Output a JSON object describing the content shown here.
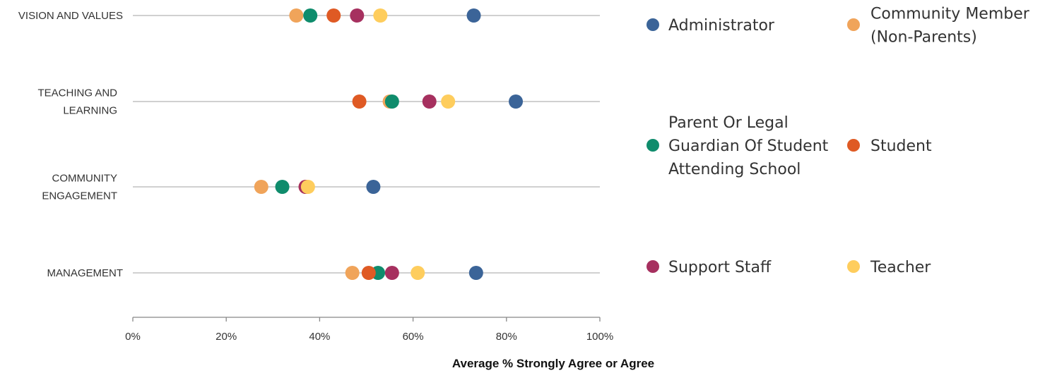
{
  "chart_data": {
    "type": "scatter",
    "subtype": "dot-plot",
    "orientation": "horizontal",
    "title": "",
    "xlabel": "Average % Strongly Agree or Agree",
    "ylabel": "",
    "xlim": [
      0,
      100
    ],
    "x_ticks": [
      "0%",
      "20%",
      "40%",
      "60%",
      "80%",
      "100%"
    ],
    "x_tick_values": [
      0,
      20,
      40,
      60,
      80,
      100
    ],
    "grid": false,
    "legend_position": "right",
    "categories": [
      [
        "VISION AND VALUES"
      ],
      [
        "TEACHING AND",
        "LEARNING"
      ],
      [
        "COMMUNITY",
        "ENGAGEMENT"
      ],
      [
        "MANAGEMENT"
      ]
    ],
    "series": [
      {
        "name": [
          "Administrator"
        ],
        "color": "#3b6498",
        "values": [
          73,
          82,
          51.5,
          73.5
        ]
      },
      {
        "name": [
          "Community Member",
          "(Non-Parents)"
        ],
        "color": "#f0a45a",
        "values": [
          35,
          55,
          27.5,
          47
        ]
      },
      {
        "name": [
          "Parent Or Legal",
          "Guardian Of Student",
          "Attending School"
        ],
        "color": "#0f8c6c",
        "values": [
          38,
          55.5,
          32,
          52.5
        ]
      },
      {
        "name": [
          "Student"
        ],
        "color": "#df5a24",
        "values": [
          43,
          48.5,
          37,
          50.5
        ]
      },
      {
        "name": [
          "Support Staff"
        ],
        "color": "#a6305f",
        "values": [
          48,
          63.5,
          37,
          55.5
        ]
      },
      {
        "name": [
          "Teacher"
        ],
        "color": "#fecd5d",
        "values": [
          53,
          67.5,
          37.5,
          61
        ]
      }
    ]
  }
}
